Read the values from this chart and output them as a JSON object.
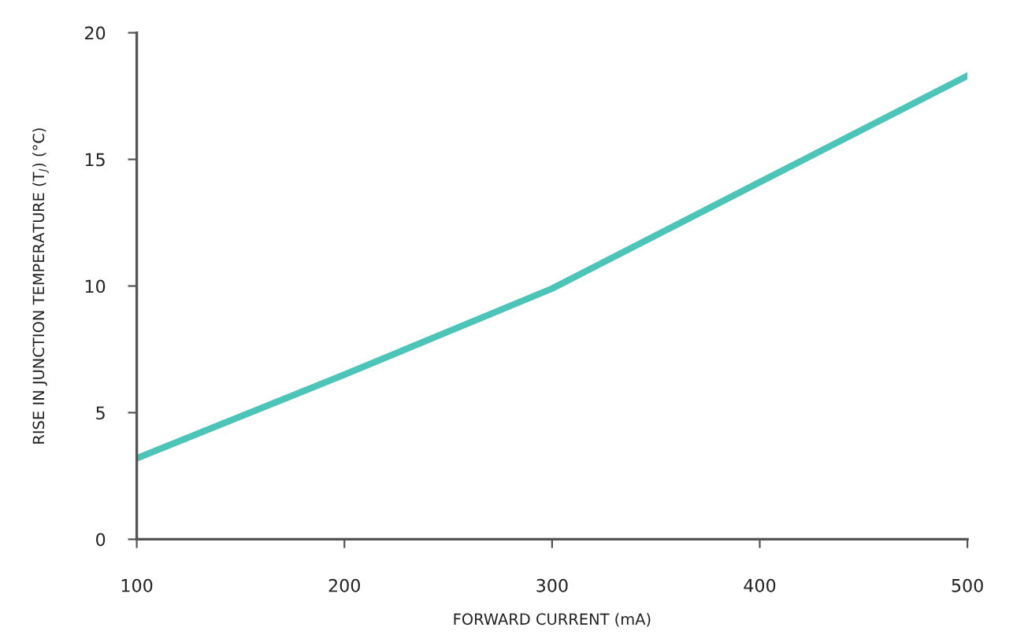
{
  "chart_data": {
    "type": "line",
    "xlabel": "FORWARD CURRENT (mA)",
    "ylabel": "RISE IN JUNCTION TEMPERATURE (T$_{J}$) (°C)",
    "x": [
      100,
      200,
      300,
      400,
      500
    ],
    "series": [
      {
        "color": "#4cc4b8",
        "values": [
          3.2,
          6.5,
          9.9,
          14.1,
          18.3
        ]
      }
    ],
    "xlim": [
      100,
      500
    ],
    "xticks": [
      100,
      200,
      300,
      400,
      500
    ],
    "ylim": [
      0,
      20
    ],
    "yticks": [
      0,
      5,
      10,
      15,
      20
    ],
    "grid": false,
    "legend": false,
    "marker": "none",
    "line_style": "solid"
  }
}
